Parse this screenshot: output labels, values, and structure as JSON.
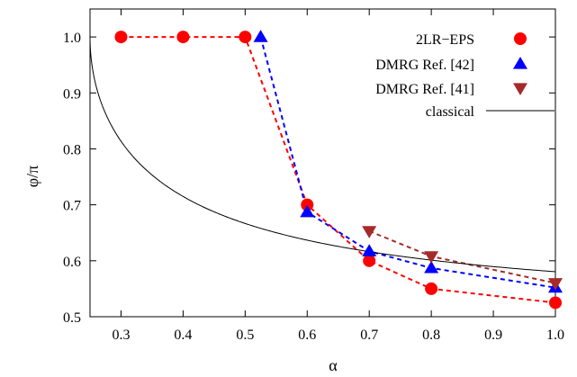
{
  "chart_data": {
    "type": "line",
    "xlabel": "α",
    "ylabel": "φ/π",
    "xlim": [
      0.25,
      1.0
    ],
    "ylim": [
      0.5,
      1.05
    ],
    "x_ticks": [
      0.3,
      0.4,
      0.5,
      0.6,
      0.7,
      0.8,
      0.9,
      1.0
    ],
    "x_tick_labels": [
      "0.3",
      "0.4",
      "0.5",
      "0.6",
      "0.7",
      "0.8",
      "0.9",
      "1.0"
    ],
    "y_ticks": [
      0.5,
      0.6,
      0.7,
      0.8,
      0.9,
      1.0
    ],
    "y_tick_labels": [
      "0.5",
      "0.6",
      "0.7",
      "0.8",
      "0.9",
      "1.0"
    ],
    "grid": false,
    "legend_position": "top-right",
    "series": [
      {
        "name": "2LR−EPS",
        "color": "#ff0000",
        "marker": "circle",
        "line": "dashed",
        "x": [
          0.3,
          0.4,
          0.5,
          0.6,
          0.7,
          0.8,
          1.0
        ],
        "y": [
          1.0,
          1.0,
          1.0,
          0.7,
          0.6,
          0.55,
          0.525
        ]
      },
      {
        "name": "DMRG Ref. [42]",
        "color": "#0000ff",
        "marker": "triangle-up",
        "line": "dashed",
        "x": [
          0.525,
          0.6,
          0.7,
          0.8,
          1.0
        ],
        "y": [
          1.0,
          0.687,
          0.617,
          0.587,
          0.552
        ]
      },
      {
        "name": "DMRG Ref. [41]",
        "color": "#a52a2a",
        "marker": "triangle-down",
        "line": "dashed",
        "x": [
          0.7,
          0.8,
          1.0
        ],
        "y": [
          0.653,
          0.608,
          0.56
        ]
      },
      {
        "name": "classical",
        "color": "#000000",
        "marker": "none",
        "line": "solid",
        "function": "arccos(-1/(4*alpha))/pi"
      }
    ]
  }
}
